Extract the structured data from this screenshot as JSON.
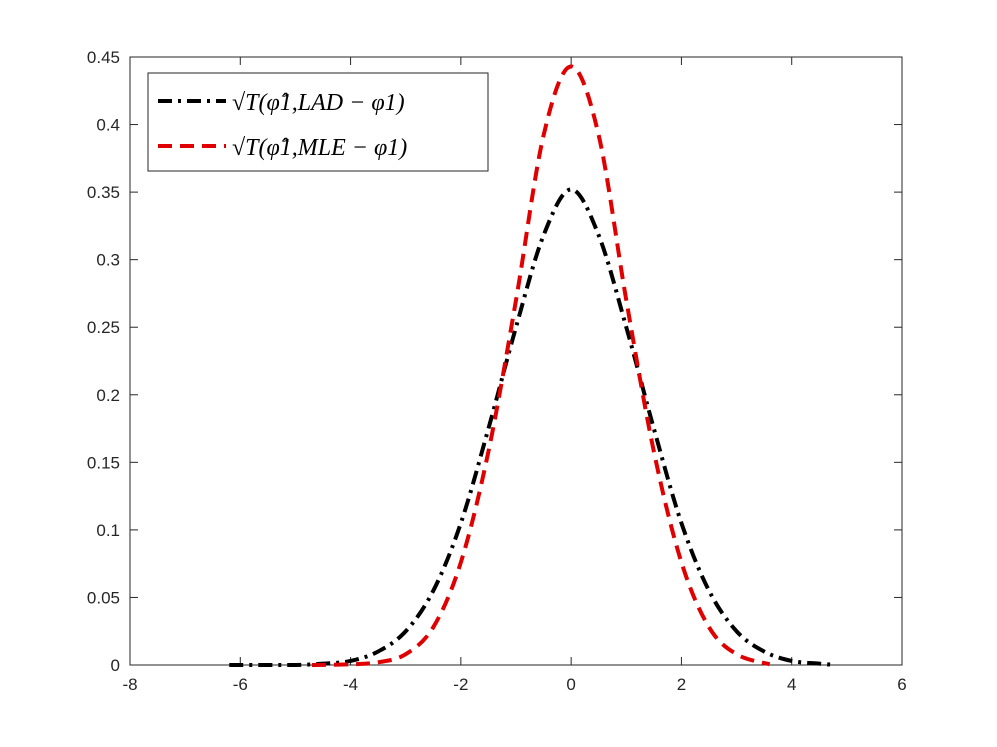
{
  "chart_data": {
    "type": "line",
    "title": "",
    "xlabel": "",
    "ylabel": "",
    "xlim": [
      -8,
      6
    ],
    "ylim": [
      0,
      0.45
    ],
    "x_ticks": [
      -8,
      -6,
      -4,
      -2,
      0,
      2,
      4,
      6
    ],
    "x_tick_labels": [
      "-8",
      "-6",
      "-4",
      "-2",
      "0",
      "2",
      "4",
      "6"
    ],
    "y_ticks": [
      0,
      0.05,
      0.1,
      0.15,
      0.2,
      0.25,
      0.3,
      0.35,
      0.4,
      0.45
    ],
    "y_tick_labels": [
      "0",
      "0.05",
      "0.1",
      "0.15",
      "0.2",
      "0.25",
      "0.3",
      "0.35",
      "0.4",
      "0.45"
    ],
    "grid": false,
    "legend_position": "top-left",
    "series": [
      {
        "name": "√T(φ̂1,LAD − φ1)",
        "color": "#000000",
        "line_style": "dash-dot",
        "x": [
          -6.2,
          -5.5,
          -5.0,
          -4.5,
          -4.0,
          -3.5,
          -3.0,
          -2.5,
          -2.0,
          -1.5,
          -1.0,
          -0.5,
          0.0,
          0.5,
          1.0,
          1.5,
          2.0,
          2.5,
          3.0,
          3.5,
          4.0,
          4.5,
          4.8
        ],
        "y": [
          0.0,
          0.0,
          0.0,
          0.001,
          0.003,
          0.01,
          0.025,
          0.055,
          0.105,
          0.175,
          0.25,
          0.318,
          0.352,
          0.318,
          0.25,
          0.175,
          0.105,
          0.055,
          0.025,
          0.01,
          0.003,
          0.001,
          0.0
        ]
      },
      {
        "name": "√T(φ̂1,MLE − φ1)",
        "color": "#e00000",
        "line_style": "dashed",
        "x": [
          -4.7,
          -4.0,
          -3.5,
          -3.0,
          -2.5,
          -2.0,
          -1.5,
          -1.0,
          -0.5,
          0.0,
          0.5,
          1.0,
          1.5,
          2.0,
          2.5,
          3.0,
          3.6
        ],
        "y": [
          0.0,
          0.0005,
          0.002,
          0.008,
          0.028,
          0.076,
          0.158,
          0.27,
          0.392,
          0.443,
          0.392,
          0.27,
          0.158,
          0.076,
          0.028,
          0.008,
          0.0005
        ]
      }
    ]
  },
  "legend": {
    "lad_label": "√T(φ̂1,LAD − φ1)",
    "mle_label": "√T(φ̂1,MLE − φ1)"
  }
}
